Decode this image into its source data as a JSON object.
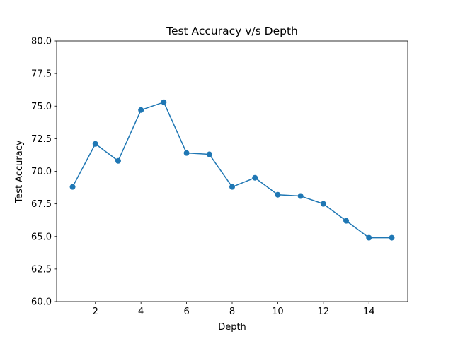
{
  "chart_data": {
    "type": "line",
    "title": "Test Accuracy v/s Depth",
    "xlabel": "Depth",
    "ylabel": "Test Accuracy",
    "xlim": [
      0.3,
      15.7
    ],
    "ylim": [
      60.0,
      80.0
    ],
    "xticks": [
      2,
      4,
      6,
      8,
      10,
      12,
      14
    ],
    "xtick_labels": [
      "2",
      "4",
      "6",
      "8",
      "10",
      "12",
      "14"
    ],
    "yticks": [
      60.0,
      62.5,
      65.0,
      67.5,
      70.0,
      72.5,
      75.0,
      77.5,
      80.0
    ],
    "ytick_labels": [
      "60.0",
      "62.5",
      "65.0",
      "67.5",
      "70.0",
      "72.5",
      "75.0",
      "77.5",
      "80.0"
    ],
    "grid": false,
    "series": [
      {
        "color": "#1f77b4",
        "marker": "circle",
        "x": [
          1,
          2,
          3,
          4,
          5,
          6,
          7,
          8,
          9,
          10,
          11,
          12,
          13,
          14,
          15
        ],
        "y": [
          68.8,
          72.1,
          70.8,
          74.7,
          75.3,
          71.4,
          71.3,
          68.8,
          69.5,
          68.2,
          68.1,
          67.5,
          66.2,
          64.9,
          64.9
        ]
      }
    ]
  }
}
